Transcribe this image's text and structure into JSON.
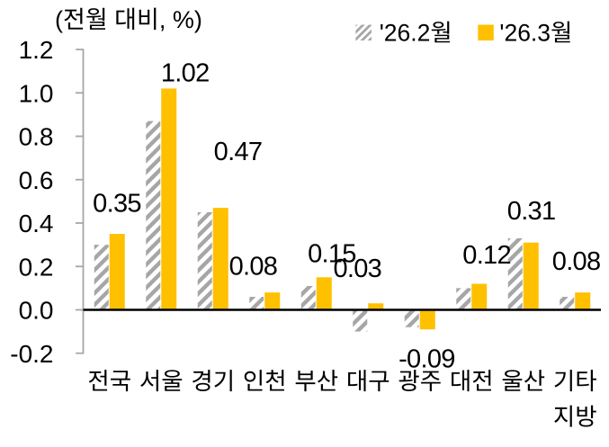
{
  "figure": {
    "unit_note": "(전월 대비, %)",
    "legend": [
      {
        "label": "'26.2월",
        "swatch": "hatched-gray"
      },
      {
        "label": "'26.3월",
        "swatch": "solid-gold"
      }
    ]
  },
  "chart_data": {
    "type": "bar",
    "title": "(전월 대비, %)",
    "categories": [
      "전국",
      "서울",
      "경기",
      "인천",
      "부산",
      "대구",
      "광주",
      "대전",
      "울산",
      "기타\n지방"
    ],
    "series": [
      {
        "name": "'26.2월",
        "style": "hatched-gray",
        "values": [
          0.3,
          0.87,
          0.45,
          0.06,
          0.11,
          -0.1,
          -0.08,
          0.1,
          0.33,
          0.06
        ]
      },
      {
        "name": "'26.3월",
        "style": "solid-gold",
        "values": [
          0.35,
          1.02,
          0.47,
          0.08,
          0.15,
          0.03,
          -0.09,
          0.12,
          0.31,
          0.08
        ],
        "data_labels": [
          "0.35",
          "1.02",
          "0.47",
          "0.08",
          "0.15",
          "0.03",
          "-0.09",
          "0.12",
          "0.31",
          "0.08"
        ]
      }
    ],
    "xlabel": "",
    "ylabel": "",
    "ylim": [
      -0.2,
      1.2
    ],
    "ytick_step": 0.2,
    "ytick_labels": [
      "1.2",
      "1.0",
      "0.8",
      "0.6",
      "0.4",
      "0.2",
      "0.0",
      "-0.2"
    ],
    "grid": false,
    "legend_position": "top-right",
    "colors": {
      "gold": "#FFC000",
      "hatch_gray": "#A6A6A6",
      "axis_gray": "#A6A6A6",
      "zero_line": "#000000",
      "text": "#000000"
    }
  }
}
